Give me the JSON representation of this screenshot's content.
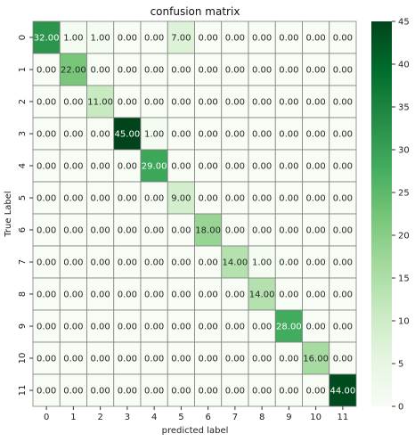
{
  "chart_data": {
    "type": "heatmap",
    "title": "confusion matrix",
    "xlabel": "predicted label",
    "ylabel": "True Label",
    "x_categories": [
      "0",
      "1",
      "2",
      "3",
      "4",
      "5",
      "6",
      "7",
      "8",
      "9",
      "10",
      "11"
    ],
    "y_categories": [
      "0",
      "1",
      "2",
      "3",
      "4",
      "5",
      "6",
      "7",
      "8",
      "9",
      "10",
      "11"
    ],
    "values": [
      [
        32,
        1,
        1,
        0,
        0,
        7,
        0,
        0,
        0,
        0,
        0,
        0
      ],
      [
        0,
        22,
        0,
        0,
        0,
        0,
        0,
        0,
        0,
        0,
        0,
        0
      ],
      [
        0,
        0,
        11,
        0,
        0,
        0,
        0,
        0,
        0,
        0,
        0,
        0
      ],
      [
        0,
        0,
        0,
        45,
        1,
        0,
        0,
        0,
        0,
        0,
        0,
        0
      ],
      [
        0,
        0,
        0,
        0,
        29,
        0,
        0,
        0,
        0,
        0,
        0,
        0
      ],
      [
        0,
        0,
        0,
        0,
        0,
        9,
        0,
        0,
        0,
        0,
        0,
        0
      ],
      [
        0,
        0,
        0,
        0,
        0,
        0,
        18,
        0,
        0,
        0,
        0,
        0
      ],
      [
        0,
        0,
        0,
        0,
        0,
        0,
        0,
        14,
        1,
        0,
        0,
        0
      ],
      [
        0,
        0,
        0,
        0,
        0,
        0,
        0,
        0,
        14,
        0,
        0,
        0
      ],
      [
        0,
        0,
        0,
        0,
        0,
        0,
        0,
        0,
        0,
        28,
        0,
        0
      ],
      [
        0,
        0,
        0,
        0,
        0,
        0,
        0,
        0,
        0,
        0,
        16,
        0
      ],
      [
        0,
        0,
        0,
        0,
        0,
        0,
        0,
        0,
        0,
        0,
        0,
        44
      ]
    ],
    "value_format": "2 decimals",
    "colormap": "Greens",
    "vmin": 0,
    "vmax": 45,
    "colorbar_ticks": [
      0,
      5,
      10,
      15,
      20,
      25,
      30,
      35,
      40,
      45
    ],
    "cell_border_color": "#808080"
  }
}
